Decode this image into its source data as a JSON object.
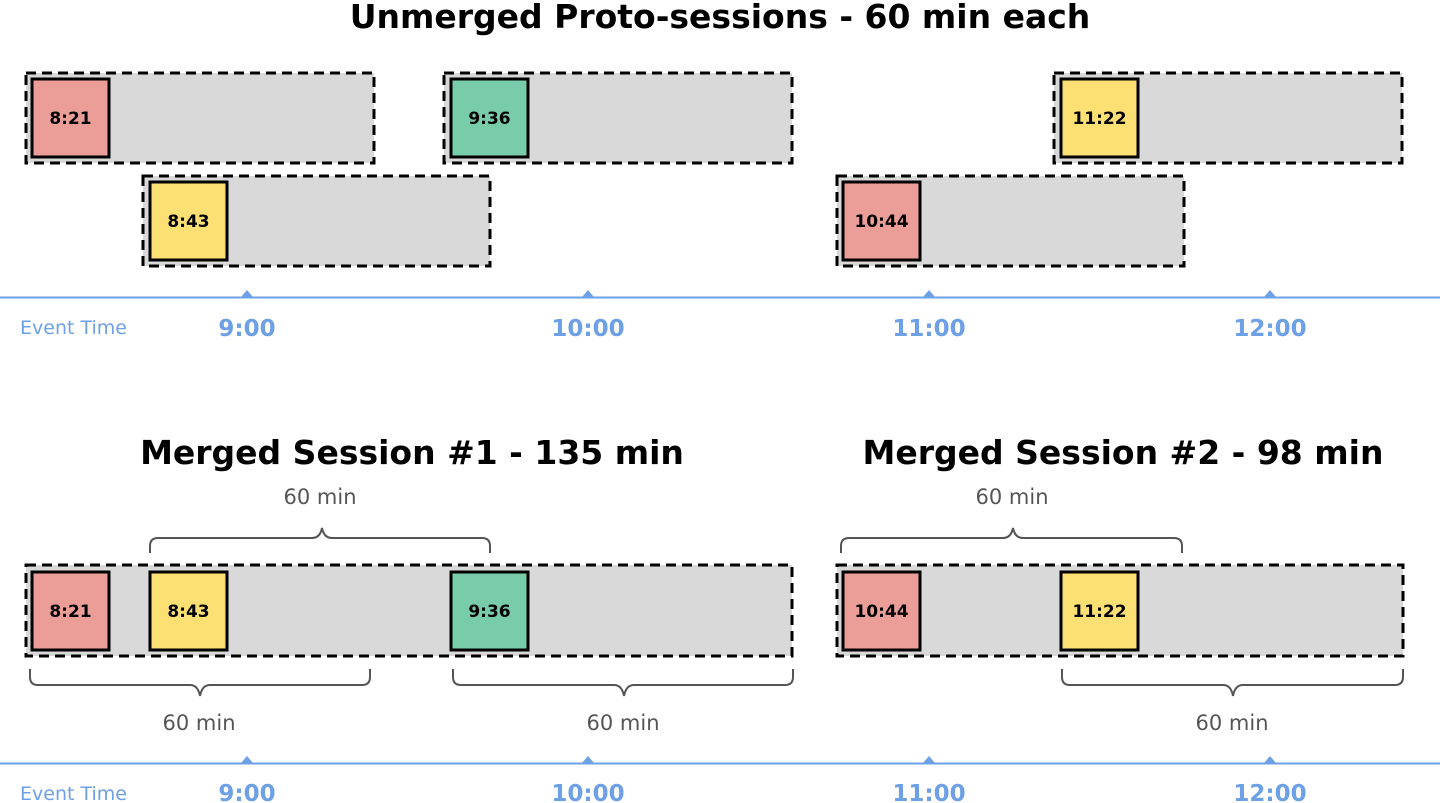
{
  "colors": {
    "red": "#eb9e98",
    "yellow": "#fde073",
    "green": "#78ccaa",
    "session_fill": "#d9d9d9",
    "axis": "#6ea0e6",
    "bracket": "#555555"
  },
  "top": {
    "title": "Unmerged Proto-sessions - 60 min each",
    "events": [
      {
        "label": "8:21",
        "color": "red"
      },
      {
        "label": "9:36",
        "color": "green"
      },
      {
        "label": "11:22",
        "color": "yellow"
      },
      {
        "label": "8:43",
        "color": "yellow"
      },
      {
        "label": "10:44",
        "color": "red"
      }
    ]
  },
  "bottom": {
    "session1": {
      "title": "Merged Session #1 - 135 min",
      "events": [
        {
          "label": "8:21",
          "color": "red"
        },
        {
          "label": "8:43",
          "color": "yellow"
        },
        {
          "label": "9:36",
          "color": "green"
        }
      ],
      "brackets": [
        "60 min",
        "60 min",
        "60 min"
      ]
    },
    "session2": {
      "title": "Merged Session #2 - 98 min",
      "events": [
        {
          "label": "10:44",
          "color": "red"
        },
        {
          "label": "11:22",
          "color": "yellow"
        }
      ],
      "brackets": [
        "60 min",
        "60 min"
      ]
    }
  },
  "axis": {
    "caption": "Event Time",
    "ticks": [
      "9:00",
      "10:00",
      "11:00",
      "12:00"
    ]
  }
}
